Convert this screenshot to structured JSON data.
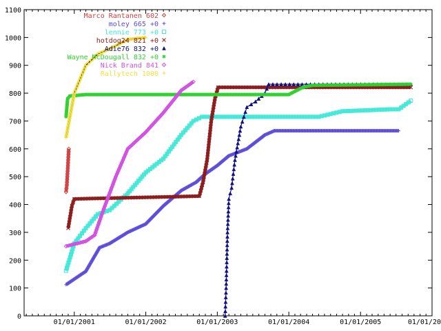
{
  "chart_data": {
    "type": "line",
    "title": "",
    "xlabel": "",
    "ylabel": "",
    "ylim": [
      0,
      1100
    ],
    "xlim": [
      "2000-04-20",
      "2006-01-01"
    ],
    "yticks": [
      0,
      100,
      200,
      300,
      400,
      500,
      600,
      700,
      800,
      900,
      1000,
      1100
    ],
    "xticks": [
      {
        "date": "2001-01-01",
        "label": "01/01/2001"
      },
      {
        "date": "2002-01-01",
        "label": "01/01/2002"
      },
      {
        "date": "2003-01-01",
        "label": "01/01/2003"
      },
      {
        "date": "2004-01-01",
        "label": "01/01/2004"
      },
      {
        "date": "2005-01-01",
        "label": "01/01/2005"
      },
      {
        "date": "2006-01-01",
        "label": "01/01/20"
      }
    ],
    "grid": false,
    "legend_position": "top-left",
    "series": [
      {
        "name": "Marco Rantanen 602",
        "color": "#d04040",
        "marker": "diamond",
        "points": [
          [
            "2000-11-20",
            445
          ],
          [
            "2000-11-24",
            470
          ],
          [
            "2000-11-28",
            520
          ],
          [
            "2000-12-01",
            560
          ],
          [
            "2000-12-04",
            600
          ]
        ]
      },
      {
        "name": "moley 665 +0",
        "color": "#5a4ad8",
        "marker": "plus",
        "points": [
          [
            "2000-11-20",
            112
          ],
          [
            "2001-03-01",
            160
          ],
          [
            "2001-05-10",
            245
          ],
          [
            "2001-07-01",
            260
          ],
          [
            "2001-10-01",
            300
          ],
          [
            "2002-01-01",
            330
          ],
          [
            "2002-04-01",
            395
          ],
          [
            "2002-07-01",
            450
          ],
          [
            "2002-09-15",
            480
          ],
          [
            "2002-11-01",
            510
          ],
          [
            "2003-01-01",
            540
          ],
          [
            "2003-03-01",
            575
          ],
          [
            "2003-06-01",
            600
          ],
          [
            "2003-09-01",
            650
          ],
          [
            "2003-10-20",
            665
          ],
          [
            "2005-07-15",
            665
          ]
        ]
      },
      {
        "name": "lennie 773 +0",
        "color": "#40e8d8",
        "marker": "square",
        "points": [
          [
            "2000-11-20",
            162
          ],
          [
            "2001-01-01",
            260
          ],
          [
            "2001-03-01",
            315
          ],
          [
            "2001-05-01",
            365
          ],
          [
            "2001-07-01",
            380
          ],
          [
            "2001-10-01",
            440
          ],
          [
            "2002-01-01",
            515
          ],
          [
            "2002-04-01",
            565
          ],
          [
            "2002-07-01",
            650
          ],
          [
            "2002-09-01",
            700
          ],
          [
            "2002-10-15",
            715
          ],
          [
            "2004-06-01",
            715
          ],
          [
            "2004-10-01",
            735
          ],
          [
            "2005-06-01",
            742
          ],
          [
            "2005-07-15",
            742
          ],
          [
            "2005-09-15",
            773
          ]
        ]
      },
      {
        "name": "hotdog24 821 +0",
        "color": "#8b1a1a",
        "marker": "x",
        "points": [
          [
            "2000-12-01",
            315
          ],
          [
            "2000-12-20",
            395
          ],
          [
            "2001-01-01",
            420
          ],
          [
            "2002-10-01",
            430
          ],
          [
            "2002-10-20",
            480
          ],
          [
            "2002-11-10",
            560
          ],
          [
            "2002-12-01",
            700
          ],
          [
            "2002-12-20",
            780
          ],
          [
            "2003-01-05",
            821
          ],
          [
            "2005-09-15",
            821
          ]
        ]
      },
      {
        "name": "Adie76 832 +0",
        "color": "#101080",
        "marker": "triangle",
        "points": [
          [
            "2003-02-10",
            0
          ],
          [
            "2003-02-15",
            100
          ],
          [
            "2003-02-22",
            300
          ],
          [
            "2003-03-01",
            420
          ],
          [
            "2003-03-15",
            460
          ],
          [
            "2003-04-01",
            560
          ],
          [
            "2003-05-01",
            680
          ],
          [
            "2003-06-01",
            750
          ],
          [
            "2003-07-15",
            770
          ],
          [
            "2003-09-01",
            800
          ],
          [
            "2003-09-20",
            832
          ],
          [
            "2005-09-15",
            832
          ]
        ]
      },
      {
        "name": "Wayne McDougall 832 +0",
        "color": "#30d030",
        "marker": "asterisk",
        "points": [
          [
            "2000-11-20",
            715
          ],
          [
            "2000-11-28",
            780
          ],
          [
            "2000-12-10",
            790
          ],
          [
            "2001-03-01",
            795
          ],
          [
            "2004-01-01",
            795
          ],
          [
            "2004-03-15",
            822
          ],
          [
            "2004-05-01",
            828
          ],
          [
            "2005-09-15",
            832
          ]
        ]
      },
      {
        "name": "Nick Brand 841",
        "color": "#d050e0",
        "marker": "diamond",
        "points": [
          [
            "2000-11-20",
            250
          ],
          [
            "2001-03-01",
            268
          ],
          [
            "2001-04-15",
            290
          ],
          [
            "2001-06-01",
            385
          ],
          [
            "2001-08-01",
            500
          ],
          [
            "2001-10-01",
            600
          ],
          [
            "2002-01-01",
            660
          ],
          [
            "2002-04-01",
            730
          ],
          [
            "2002-07-01",
            810
          ],
          [
            "2002-09-01",
            841
          ]
        ]
      },
      {
        "name": "Rallytech 1000",
        "color": "#f0e040",
        "marker": "plus",
        "points": [
          [
            "2000-11-20",
            640
          ],
          [
            "2001-01-01",
            800
          ],
          [
            "2001-03-01",
            900
          ],
          [
            "2001-05-01",
            940
          ],
          [
            "2001-08-01",
            970
          ],
          [
            "2001-10-01",
            993
          ],
          [
            "2002-01-01",
            1000
          ]
        ]
      }
    ]
  }
}
